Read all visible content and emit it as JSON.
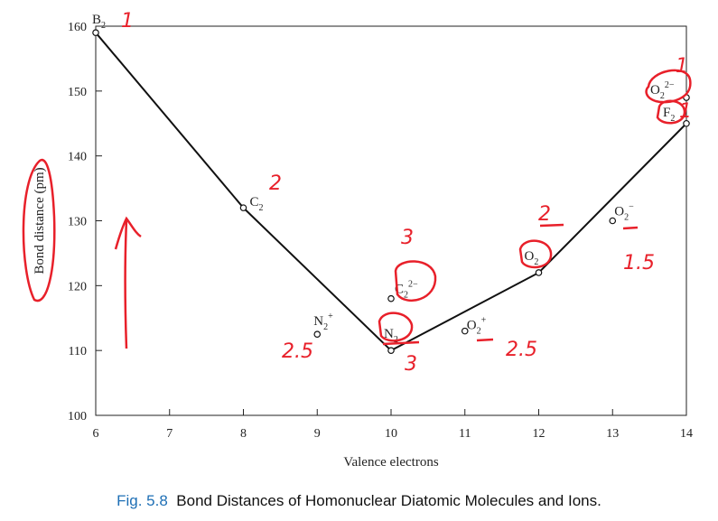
{
  "chart_data": {
    "type": "line",
    "xlabel": "Valence electrons",
    "ylabel": "Bond distance (pm)",
    "xlim": [
      6,
      14
    ],
    "ylim": [
      100,
      160
    ],
    "xticks": [
      6,
      7,
      8,
      9,
      10,
      11,
      12,
      13,
      14
    ],
    "yticks": [
      100,
      110,
      120,
      130,
      140,
      150,
      160
    ],
    "line_series": [
      {
        "base": "B",
        "sub": "2",
        "sup": "",
        "x": 6,
        "y": 159
      },
      {
        "base": "C",
        "sub": "2",
        "sup": "",
        "x": 8,
        "y": 132
      },
      {
        "base": "N",
        "sub": "2",
        "sup": "",
        "x": 10,
        "y": 110
      },
      {
        "base": "O",
        "sub": "2",
        "sup": "",
        "x": 12,
        "y": 122
      },
      {
        "base": "F",
        "sub": "2",
        "sup": "",
        "x": 14,
        "y": 145
      }
    ],
    "ion_points": [
      {
        "base": "N",
        "sub": "2",
        "sup": "+",
        "x": 9,
        "y": 112.5
      },
      {
        "base": "C",
        "sub": "2",
        "sup": "2−",
        "x": 10,
        "y": 118
      },
      {
        "base": "O",
        "sub": "2",
        "sup": "+",
        "x": 11,
        "y": 113
      },
      {
        "base": "O",
        "sub": "2",
        "sup": "−",
        "x": 13,
        "y": 130
      },
      {
        "base": "O",
        "sub": "2",
        "sup": "2−",
        "x": 14,
        "y": 149
      }
    ]
  },
  "annotations": {
    "bond_orders": [
      "1",
      "2",
      "3",
      "2.5",
      "3",
      "2.5",
      "2",
      "1.5",
      "1",
      "1"
    ],
    "color": "#e8202a"
  },
  "caption": {
    "figure_number": "Fig. 5.8",
    "text": "Bond Distances of Homonuclear Diatomic Molecules and Ions."
  }
}
